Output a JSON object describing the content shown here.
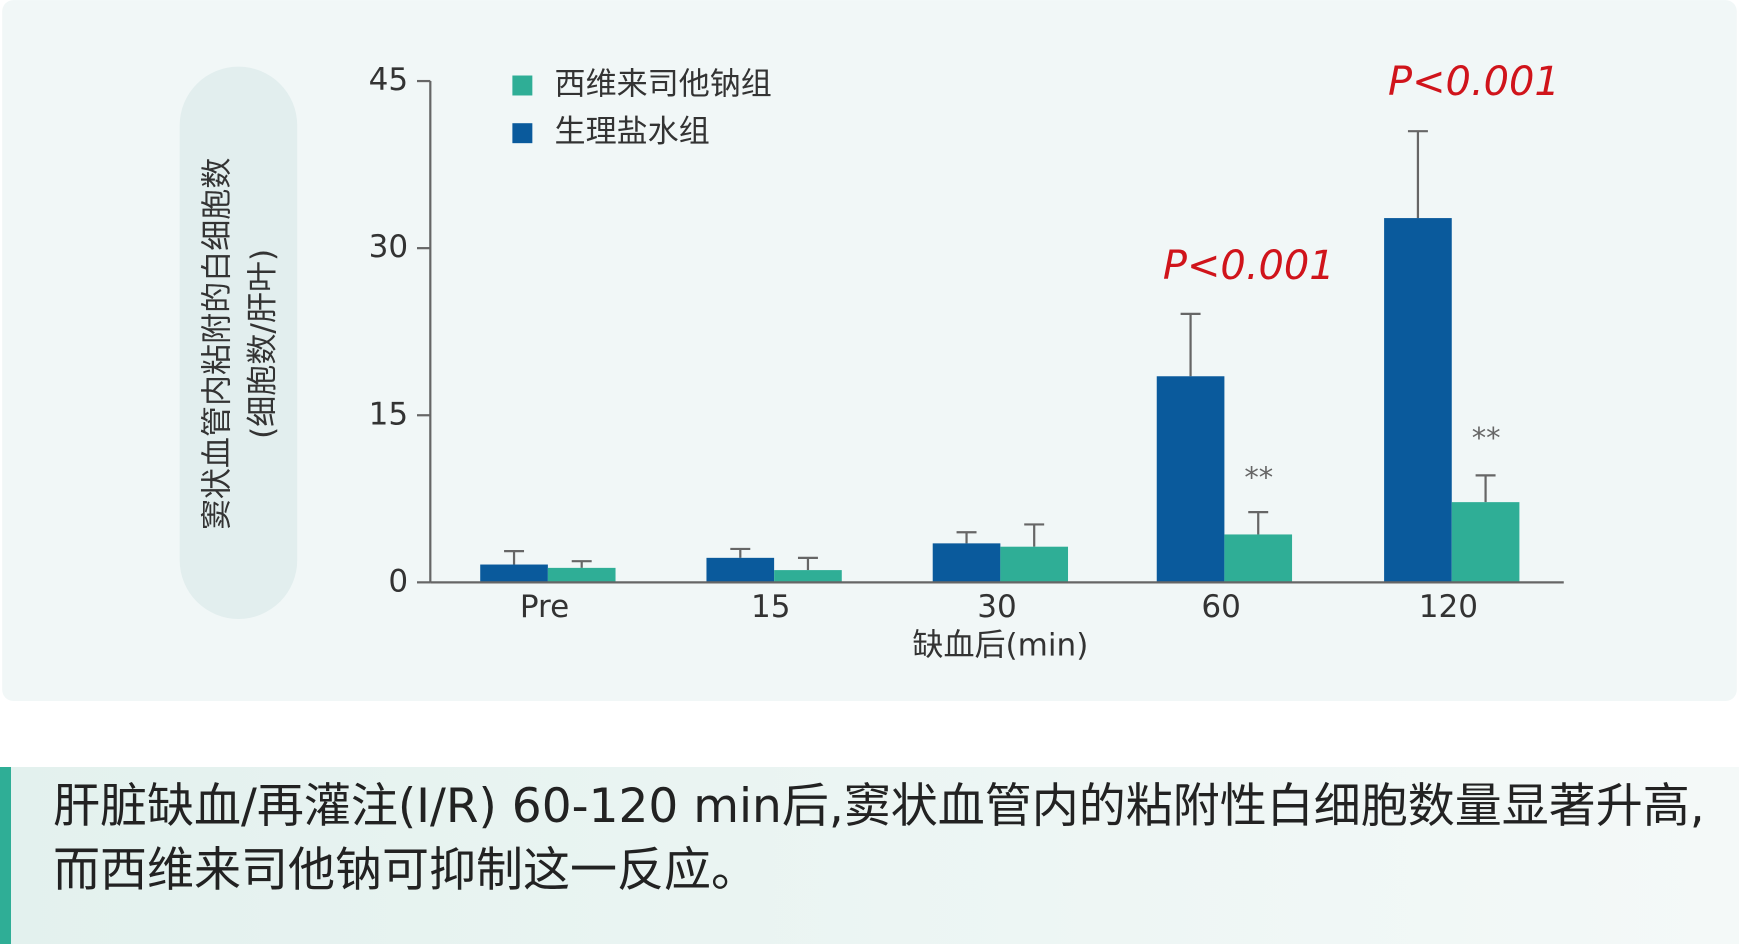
{
  "chart_data": {
    "type": "bar",
    "y_label": [
      "窦状血管内粘附的白细胞数",
      "(细胞数/肝叶)"
    ],
    "x_label": "缺血后(min)",
    "categories": [
      "Pre",
      "15",
      "30",
      "60",
      "120"
    ],
    "series": [
      {
        "name": "生理盐水组",
        "color": "#0a5a9c",
        "values": [
          1.6,
          2.2,
          3.5,
          18.5,
          32.7
        ],
        "errors": [
          1.2,
          0.8,
          1.0,
          5.6,
          7.8
        ]
      },
      {
        "name": "西维来司他钠组",
        "color": "#2fae96",
        "values": [
          1.3,
          1.1,
          3.2,
          4.3,
          7.2
        ],
        "errors": [
          0.6,
          1.1,
          2.0,
          2.0,
          2.4
        ]
      }
    ],
    "annotations": [
      "P<0.001",
      "P<0.001",
      "**",
      "**"
    ],
    "ylim": [
      0,
      45
    ],
    "yticks": [
      0,
      15,
      30,
      45
    ]
  },
  "caption": "肝脏缺血/再灌注(I/R) 60-120 min后,窦状血管内的粘附性白细胞数量显著升高,而西维来司他钠可抑制这一反应。"
}
